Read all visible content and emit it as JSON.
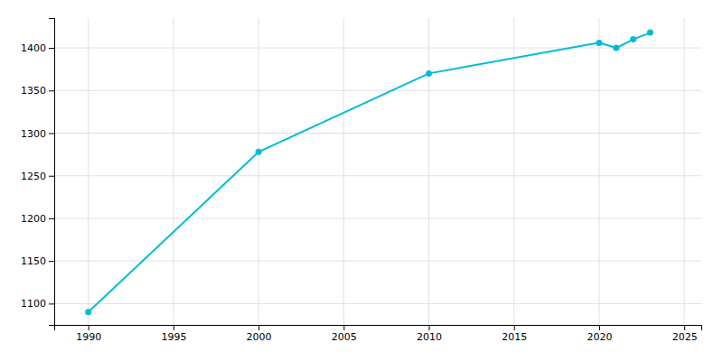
{
  "chart_data": {
    "type": "line",
    "x": [
      1990,
      2000,
      2010,
      2020,
      2021,
      2022,
      2023
    ],
    "values": [
      1090,
      1278,
      1370,
      1406,
      1400,
      1410,
      1418
    ],
    "color": "#00bcd4",
    "marker": "circle",
    "xlim": [
      1988,
      2026
    ],
    "ylim": [
      1075,
      1435
    ],
    "xticks": [
      1990,
      1995,
      2000,
      2005,
      2010,
      2015,
      2020,
      2025
    ],
    "yticks": [
      1100,
      1150,
      1200,
      1250,
      1300,
      1350,
      1400
    ],
    "grid": true
  }
}
